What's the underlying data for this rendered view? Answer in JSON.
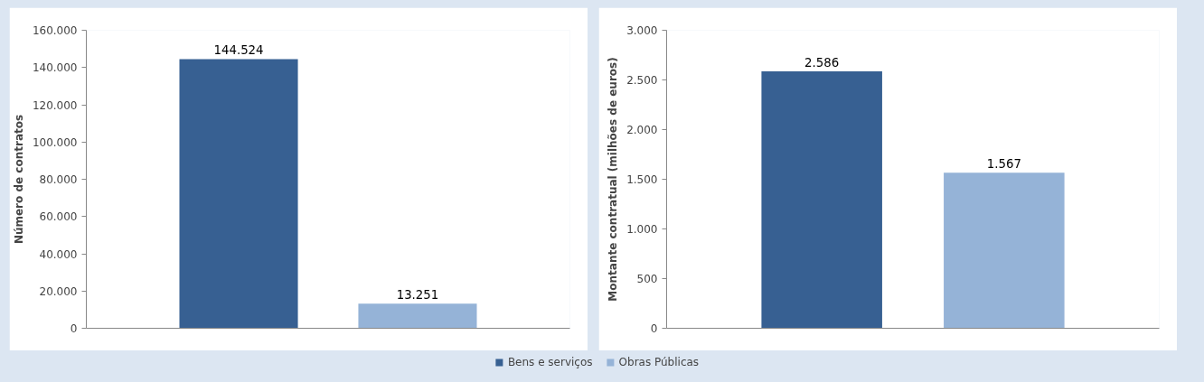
{
  "chart_data": [
    {
      "type": "bar",
      "ylabel": "Número de contratos",
      "categories": [
        null
      ],
      "series": [
        {
          "name": "Bens e serviços",
          "color": "#376092",
          "values": [
            144524
          ],
          "value_labels": [
            "144.524"
          ]
        },
        {
          "name": "Obras Públicas",
          "color": "#95b3d7",
          "values": [
            13251
          ],
          "value_labels": [
            "13.251"
          ]
        }
      ],
      "ylim": [
        0,
        160000
      ],
      "yticks": [
        0,
        {
          "value": 20000,
          "label": "20.000"
        },
        {
          "value": 40000,
          "label": "40.000"
        },
        {
          "value": 60000,
          "label": "60.000"
        },
        {
          "value": 80000,
          "label": "80.000"
        },
        {
          "value": 100000,
          "label": "100.000"
        },
        {
          "value": 120000,
          "label": "120.000"
        },
        {
          "value": 140000,
          "label": "140.000"
        },
        {
          "value": 160000,
          "label": "160.000"
        }
      ],
      "legend": "bottom",
      "grid": false
    },
    {
      "type": "bar",
      "ylabel": "Montante contratual (milhões de euros)",
      "categories": [
        null
      ],
      "series": [
        {
          "color": "#376092",
          "values": [
            2586
          ],
          "value_labels": [
            "2.586"
          ]
        },
        {
          "color": "#95b3d7",
          "values": [
            1567
          ],
          "value_labels": [
            "1.567"
          ]
        }
      ],
      "ylim": [
        0,
        3000
      ],
      "yticks": [
        0,
        500,
        {
          "value": 1000,
          "label": "1.000"
        },
        {
          "value": 1500,
          "label": "1.500"
        },
        {
          "value": 2000,
          "label": "2.000"
        },
        {
          "value": 2500,
          "label": "2.500"
        },
        {
          "value": 3000,
          "label": "3.000"
        }
      ],
      "grid": false
    }
  ]
}
